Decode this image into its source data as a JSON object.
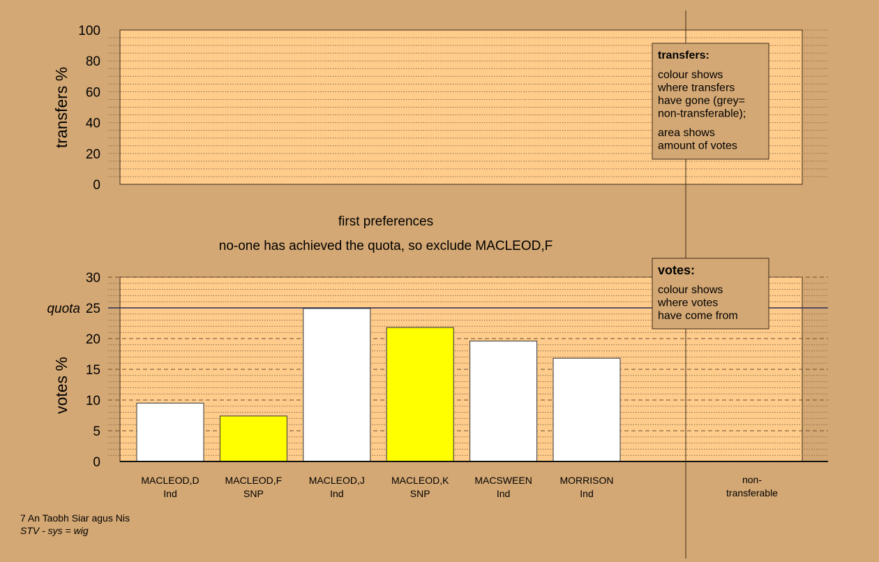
{
  "colors": {
    "background": "#d4a874",
    "plot_fill": "#ffcc8c",
    "snp": "#ffff00",
    "ind": "#ffffff",
    "legend_fill": "#d4a874",
    "line": "#3a2a1a"
  },
  "chart_data": [
    {
      "type": "bar",
      "title": "",
      "ylabel": "transfers %",
      "ylim": [
        0,
        100
      ],
      "yticks": [
        "0",
        "20",
        "40",
        "60",
        "80",
        "100"
      ],
      "grid": true,
      "categories": [],
      "values": [],
      "legend": {
        "title": "transfers:",
        "lines1": [
          "colour shows",
          "where transfers",
          "have gone (grey=",
          "non-transferable);"
        ],
        "lines2": [
          "area shows",
          "amount of votes"
        ],
        "placement": "top-right"
      }
    },
    {
      "type": "bar",
      "title": "first preferences",
      "subtitle": "no-one has achieved the quota, so exclude MACLEOD,F",
      "ylabel": "votes %",
      "ylim": [
        0,
        30
      ],
      "yticks": [
        "0",
        "5",
        "10",
        "15",
        "20",
        "25",
        "30"
      ],
      "grid": true,
      "quota": {
        "label": "quota",
        "value": 25
      },
      "categories": [
        {
          "name": "MACLEOD,D",
          "party": "Ind"
        },
        {
          "name": "MACLEOD,F",
          "party": "SNP"
        },
        {
          "name": "MACLEOD,J",
          "party": "Ind"
        },
        {
          "name": "MACLEOD,K",
          "party": "SNP"
        },
        {
          "name": "MACSWEEN",
          "party": "Ind"
        },
        {
          "name": "MORRISON",
          "party": "Ind"
        }
      ],
      "values": [
        9.5,
        7.4,
        24.9,
        21.8,
        19.6,
        16.8
      ],
      "nontransferable": {
        "line1": "non-",
        "line2": "transferable"
      },
      "legend": {
        "title": "votes:",
        "lines": [
          "colour shows",
          "where votes",
          "have come from"
        ],
        "placement": "top-right"
      }
    }
  ],
  "footer": {
    "line1": "7 An Taobh Siar agus Nis",
    "line2": "STV - sys = wig"
  }
}
